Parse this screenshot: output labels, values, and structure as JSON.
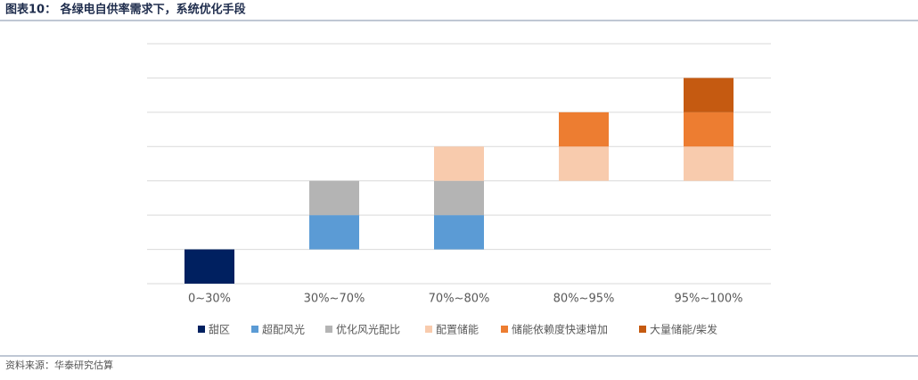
{
  "title": "图表10：  各绿电自供率需求下，系统优化手段",
  "source": "资料来源：华泰研究估算",
  "chart_data": {
    "type": "floating-bar",
    "categories": [
      "0~30%",
      "30%~70%",
      "70%~80%",
      "80%~95%",
      "95%~100%"
    ],
    "series": [
      {
        "name": "甜区",
        "color": "#002060",
        "values": [
          [
            0,
            1
          ],
          null,
          null,
          null,
          null
        ]
      },
      {
        "name": "超配风光",
        "color": "#5b9bd5",
        "values": [
          null,
          [
            1,
            2
          ],
          [
            1,
            2
          ],
          null,
          null
        ]
      },
      {
        "name": "优化风光配比",
        "color": "#b4b4b4",
        "values": [
          null,
          [
            2,
            3
          ],
          [
            2,
            3
          ],
          null,
          null
        ]
      },
      {
        "name": "配置储能",
        "color": "#f8cbad",
        "values": [
          null,
          null,
          [
            3,
            4
          ],
          [
            3,
            4
          ],
          [
            3,
            4
          ]
        ]
      },
      {
        "name": "储能依赖度快速增加",
        "color": "#ed7d31",
        "values": [
          null,
          null,
          null,
          [
            4,
            5
          ],
          [
            4,
            5
          ]
        ]
      },
      {
        "name": "大量储能/柴发",
        "color": "#c55a11",
        "values": [
          null,
          null,
          null,
          null,
          [
            5,
            6
          ]
        ]
      }
    ],
    "ylim": [
      0,
      7
    ],
    "yticks": [
      0,
      1,
      2,
      3,
      4,
      5,
      6,
      7
    ],
    "grid": true
  }
}
